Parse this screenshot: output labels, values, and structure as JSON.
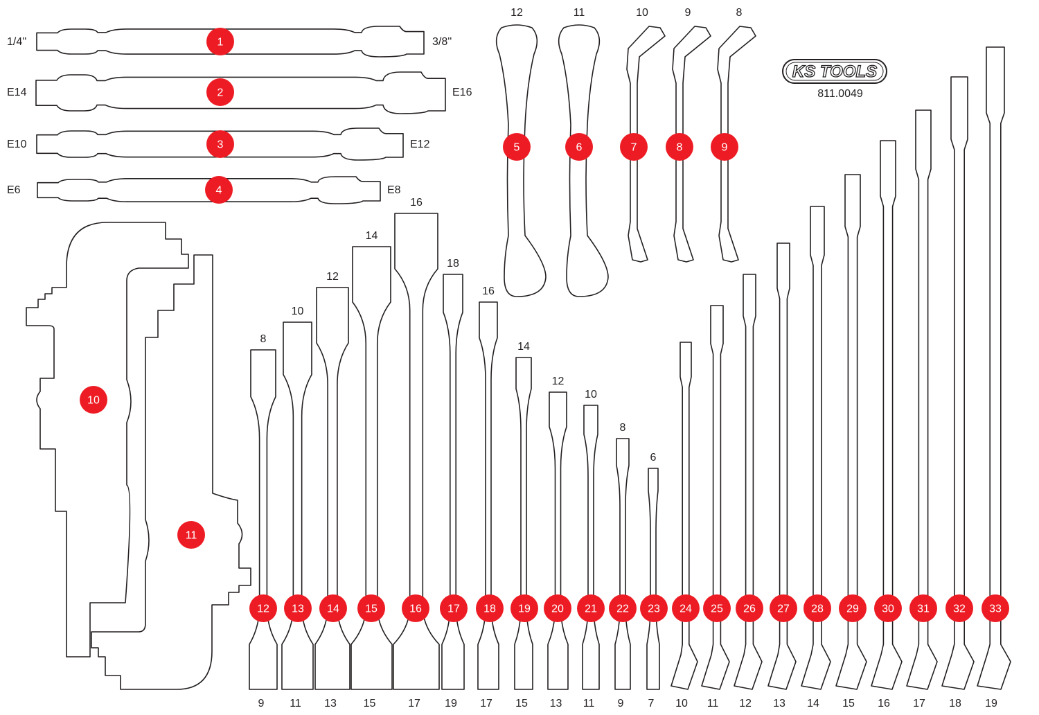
{
  "logo": {
    "text": "KS TOOLS",
    "part_number": "811.0049"
  },
  "bits": [
    {
      "number": "1",
      "left": "1/4''",
      "right": "3/8''"
    },
    {
      "number": "2",
      "left": "E14",
      "right": "E16"
    },
    {
      "number": "3",
      "left": "E10",
      "right": "E12"
    },
    {
      "number": "4",
      "left": "E6",
      "right": "E8"
    }
  ],
  "box_wrenches": [
    {
      "number": "5",
      "size": "12"
    },
    {
      "number": "6",
      "size": "11"
    },
    {
      "number": "7",
      "size": "10"
    },
    {
      "number": "8",
      "size": "9"
    },
    {
      "number": "9",
      "size": "8"
    }
  ],
  "handles": [
    {
      "number": "10"
    },
    {
      "number": "11"
    }
  ],
  "double_wrenches": [
    {
      "number": "12",
      "top": "8",
      "bottom": "9"
    },
    {
      "number": "13",
      "top": "10",
      "bottom": "11"
    },
    {
      "number": "14",
      "top": "12",
      "bottom": "13"
    },
    {
      "number": "15",
      "top": "14",
      "bottom": "15"
    },
    {
      "number": "16",
      "top": "16",
      "bottom": "17"
    },
    {
      "number": "17",
      "top": "18",
      "bottom": "19"
    },
    {
      "number": "18",
      "top": "16",
      "bottom": "17"
    },
    {
      "number": "19",
      "top": "14",
      "bottom": "15"
    },
    {
      "number": "20",
      "top": "12",
      "bottom": "13"
    },
    {
      "number": "21",
      "top": "10",
      "bottom": "11"
    },
    {
      "number": "22",
      "top": "8",
      "bottom": "9"
    },
    {
      "number": "23",
      "top": "6",
      "bottom": "7"
    }
  ],
  "combination_wrenches": [
    {
      "number": "24",
      "bottom": "10"
    },
    {
      "number": "25",
      "bottom": "11"
    },
    {
      "number": "26",
      "bottom": "12"
    },
    {
      "number": "27",
      "bottom": "13"
    },
    {
      "number": "28",
      "bottom": "14"
    },
    {
      "number": "29",
      "bottom": "15"
    },
    {
      "number": "30",
      "bottom": "16"
    },
    {
      "number": "31",
      "bottom": "17"
    },
    {
      "number": "32",
      "bottom": "18"
    },
    {
      "number": "33",
      "bottom": "19"
    }
  ],
  "colors": {
    "badge": "#ed1c24",
    "outline": "#231f20"
  }
}
